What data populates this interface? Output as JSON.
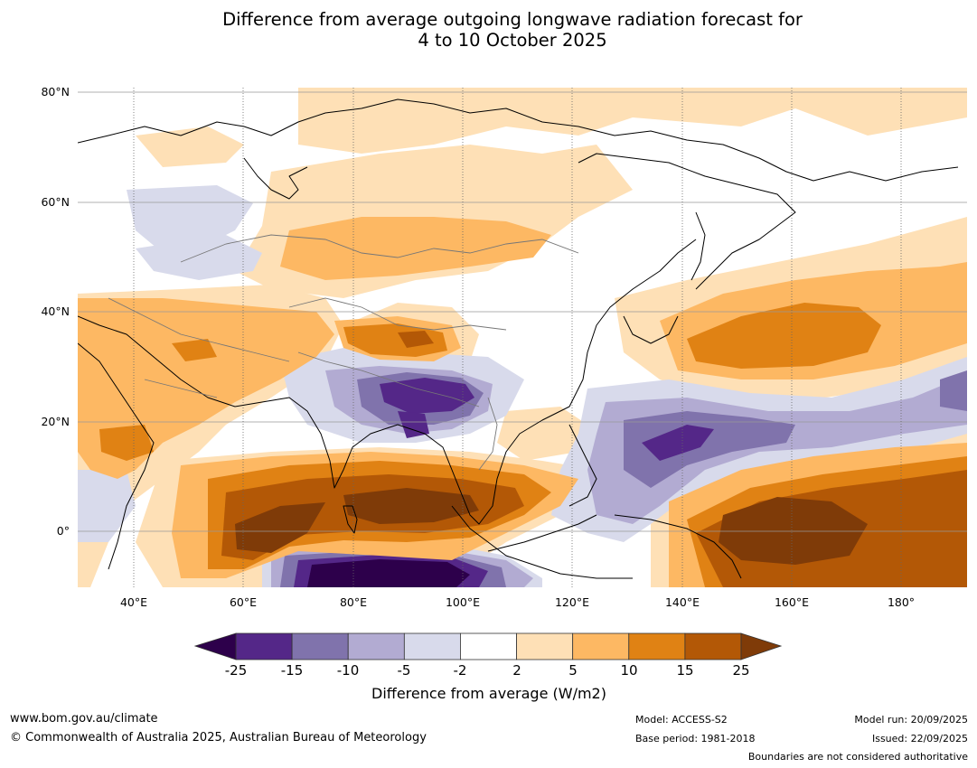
{
  "title": {
    "line1": "Difference from average outgoing longwave radiation forecast for",
    "line2": "4 to 10 October 2025"
  },
  "map": {
    "lat_labels": [
      "80°N",
      "60°N",
      "40°N",
      "20°N",
      "0°"
    ],
    "lon_labels": [
      "40°E",
      "60°E",
      "80°E",
      "100°E",
      "120°E",
      "140°E",
      "160°E",
      "180°"
    ],
    "extent": {
      "lon_min": 30,
      "lon_max": 192,
      "lat_min": -10,
      "lat_max": 81
    }
  },
  "colorbar": {
    "ticks": [
      "-25",
      "-15",
      "-10",
      "-5",
      "-2",
      "2",
      "5",
      "10",
      "15",
      "25"
    ],
    "under_color": "#2d004b",
    "over_color": "#7f3b08",
    "colors": [
      "#542788",
      "#8073ac",
      "#b2abd2",
      "#d8daeb",
      "#ffffff",
      "#fee0b6",
      "#fdb863",
      "#e08214",
      "#b35806"
    ],
    "label": "Difference from average (W/m2)"
  },
  "footer": {
    "url": "www.bom.gov.au/climate",
    "copyright": "© Commonwealth of Australia 2025, Australian Bureau of Meteorology",
    "model": "Model: ACCESS-S2",
    "base_period": "Base period: 1981-2018",
    "model_run": "Model run: 20/09/2025",
    "issued": "Issued: 22/09/2025",
    "disclaimer": "Boundaries are not considered authoritative"
  }
}
